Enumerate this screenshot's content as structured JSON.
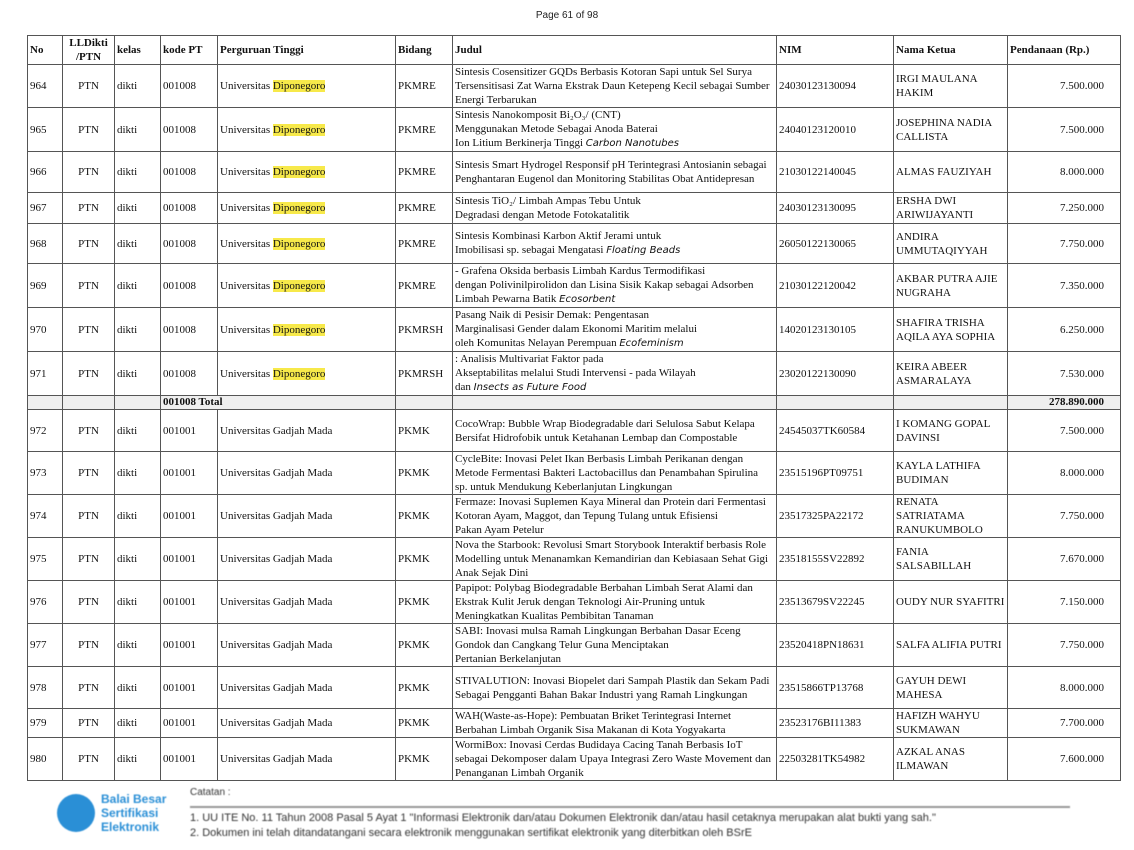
{
  "page_label": "Page 61 of 98",
  "highlight_color": "#f7e94a",
  "headers": [
    "No",
    "LLDikti /PTN",
    "kelas",
    "kode PT",
    "Perguruan Tinggi",
    "Bidang",
    "Judul",
    "NIM",
    "Nama Ketua",
    "Pendanaan (Rp.)"
  ],
  "rows": [
    {
      "no": "964",
      "lldikti": "PTN",
      "kelas": "dikti",
      "kode": "001008",
      "pt_a": "Universitas ",
      "pt_b": "Diponegoro",
      "bidang": "PKMRE",
      "judul": "Sintesis Cosensitizer GQDs Berbasis Kotoran Sapi untuk Sel Surya\nTersensitisasi Zat Warna Ekstrak Daun Ketepeng Kecil sebagai Sumber\nEnergi Terbarukan",
      "italic": "",
      "nim": "24030123130094",
      "nama": "IRGI MAULANA HAKIM",
      "dana": "7.500.000"
    },
    {
      "no": "965",
      "lldikti": "PTN",
      "kelas": "dikti",
      "kode": "001008",
      "pt_a": "Universitas ",
      "pt_b": "Diponegoro",
      "bidang": "PKMRE",
      "judul": "Sintesis Nanokomposit Bi₂O₃/                                (CNT)\nMenggunakan Metode                                  Sebagai Anoda Baterai\nIon Litium Berkinerja Tinggi",
      "italic": "Carbon Nanotubes",
      "nim": "24040123120010",
      "nama": "JOSEPHINA NADIA CALLISTA",
      "dana": "7.500.000"
    },
    {
      "no": "966",
      "lldikti": "PTN",
      "kelas": "dikti",
      "kode": "001008",
      "pt_a": "Universitas ",
      "pt_b": "Diponegoro",
      "bidang": "PKMRE",
      "judul": "Sintesis Smart Hydrogel Responsif pH Terintegrasi Antosianin sebagai\nPenghantaran Eugenol dan Monitoring Stabilitas Obat Antidepresan",
      "italic": "",
      "nim": "21030122140045",
      "nama": "ALMAS FAUZIYAH",
      "dana": "8.000.000"
    },
    {
      "no": "967",
      "lldikti": "PTN",
      "kelas": "dikti",
      "kode": "001008",
      "pt_a": "Universitas ",
      "pt_b": "Diponegoro",
      "bidang": "PKMRE",
      "judul": "Sintesis TiO₂/                                        Limbah Ampas Tebu Untuk\nDegradasi                   dengan Metode Fotokatalitik",
      "italic": "",
      "nim": "24030123130095",
      "nama": "ERSHA DWI ARIWIJAYANTI",
      "dana": "7.250.000"
    },
    {
      "no": "968",
      "lldikti": "PTN",
      "kelas": "dikti",
      "kode": "001008",
      "pt_a": "Universitas ",
      "pt_b": "Diponegoro",
      "bidang": "PKMRE",
      "judul": "Sintesis                           Kombinasi Karbon Aktif Jerami untuk\nImobilisasi              sp. sebagai                          Mengatasi",
      "italic": "Floating Beads",
      "nim": "26050122130065",
      "nama": "ANDIRA UMMUTAQIYYAH",
      "dana": "7.750.000"
    },
    {
      "no": "969",
      "lldikti": "PTN",
      "kelas": "dikti",
      "kode": "001008",
      "pt_a": "Universitas ",
      "pt_b": "Diponegoro",
      "bidang": "PKMRE",
      "judul": "      -            Grafena Oksida berbasis Limbah Kardus Termodifikasi\ndengan Polivinilpirolidon dan Lisina Sisik Kakap sebagai Adsorben\nLimbah Pewarna Batik",
      "italic": "Ecosorbent",
      "nim": "21030122120042",
      "nama": "AKBAR PUTRA AJIE NUGRAHA",
      "dana": "7.350.000"
    },
    {
      "no": "970",
      "lldikti": "PTN",
      "kelas": "dikti",
      "kode": "001008",
      "pt_a": "Universitas ",
      "pt_b": "Diponegoro",
      "bidang": "PKMRSH",
      "judul": "Pasang Naik                        di Pesisir Demak: Pengentasan\nMarginalisasi Gender dalam Ekonomi Maritim melalui\n             oleh Komunitas Nelayan Perempuan",
      "italic": "Ecofeminism",
      "nim": "14020123130105",
      "nama": "SHAFIRA TRISHA AQILA AYA SOPHIA",
      "dana": "6.250.000"
    },
    {
      "no": "971",
      "lldikti": "PTN",
      "kelas": "dikti",
      "kode": "001008",
      "pt_a": "Universitas ",
      "pt_b": "Diponegoro",
      "bidang": "PKMRSH",
      "judul": "                                : Analisis Multivariat Faktor pada\nAkseptabilitas melalui Studi Intervensi        -               pada Wilayah\n                   dan",
      "italic": "Insects as Future Food",
      "nim": "23020122130090",
      "nama": "KEIRA ABEER ASMARALAYA",
      "dana": "7.530.000"
    }
  ],
  "total": {
    "label": "001008 Total",
    "value": "278.890.000"
  },
  "rows2": [
    {
      "no": "972",
      "lldikti": "PTN",
      "kelas": "dikti",
      "kode": "001001",
      "pt": "Universitas Gadjah Mada",
      "bidang": "PKMK",
      "judul": "CocoWrap: Bubble Wrap Biodegradable dari Selulosa Sabut Kelapa\nBersifat Hidrofobik untuk Ketahanan Lembap dan Compostable",
      "nim": "24545037TK60584",
      "nama": "I KOMANG GOPAL DAVINSI",
      "dana": "7.500.000"
    },
    {
      "no": "973",
      "lldikti": "PTN",
      "kelas": "dikti",
      "kode": "001001",
      "pt": "Universitas Gadjah Mada",
      "bidang": "PKMK",
      "judul": "CycleBite: Inovasi Pelet Ikan Berbasis Limbah Perikanan dengan\nMetode Fermentasi Bakteri Lactobacillus dan Penambahan Spirulina\nsp. untuk Mendukung Keberlanjutan Lingkungan",
      "nim": "23515196PT09751",
      "nama": "KAYLA LATHIFA BUDIMAN",
      "dana": "8.000.000"
    },
    {
      "no": "974",
      "lldikti": "PTN",
      "kelas": "dikti",
      "kode": "001001",
      "pt": "Universitas Gadjah Mada",
      "bidang": "PKMK",
      "judul": "Fermaze: Inovasi Suplemen Kaya Mineral dan Protein dari Fermentasi\nKotoran Ayam, Maggot, dan Tepung Tulang untuk Efisiensi\nPakan Ayam Petelur",
      "nim": "23517325PA22172",
      "nama": "RENATA SATRIATAMA RANUKUMBOLO",
      "dana": "7.750.000"
    },
    {
      "no": "975",
      "lldikti": "PTN",
      "kelas": "dikti",
      "kode": "001001",
      "pt": "Universitas Gadjah Mada",
      "bidang": "PKMK",
      "judul": "Nova the Starbook: Revolusi Smart Storybook Interaktif berbasis Role\nModelling untuk Menanamkan Kemandirian dan Kebiasaan Sehat Gigi\nAnak Sejak Dini",
      "nim": "23518155SV22892",
      "nama": "FANIA SALSABILLAH",
      "dana": "7.670.000"
    },
    {
      "no": "976",
      "lldikti": "PTN",
      "kelas": "dikti",
      "kode": "001001",
      "pt": "Universitas Gadjah Mada",
      "bidang": "PKMK",
      "judul": "Papipot: Polybag Biodegradable Berbahan Limbah Serat Alami dan\nEkstrak Kulit Jeruk dengan Teknologi Air-Pruning untuk\nMeningkatkan Kualitas Pembibitan Tanaman",
      "nim": "23513679SV22245",
      "nama": "OUDY NUR SYAFITRI",
      "dana": "7.150.000"
    },
    {
      "no": "977",
      "lldikti": "PTN",
      "kelas": "dikti",
      "kode": "001001",
      "pt": "Universitas Gadjah Mada",
      "bidang": "PKMK",
      "judul": "SABI: Inovasi mulsa Ramah Lingkungan Berbahan Dasar Eceng\nGondok dan Cangkang Telur Guna Menciptakan\nPertanian Berkelanjutan",
      "nim": "23520418PN18631",
      "nama": "SALFA ALIFIA PUTRI",
      "dana": "7.750.000"
    },
    {
      "no": "978",
      "lldikti": "PTN",
      "kelas": "dikti",
      "kode": "001001",
      "pt": "Universitas Gadjah Mada",
      "bidang": "PKMK",
      "judul": "STIVALUTION: Inovasi Biopelet dari Sampah Plastik dan Sekam Padi\nSebagai Pengganti Bahan Bakar Industri yang Ramah Lingkungan",
      "nim": "23515866TP13768",
      "nama": "GAYUH DEWI MAHESA",
      "dana": "8.000.000"
    },
    {
      "no": "979",
      "lldikti": "PTN",
      "kelas": "dikti",
      "kode": "001001",
      "pt": "Universitas Gadjah Mada",
      "bidang": "PKMK",
      "judul": "WAH(Waste-as-Hope): Pembuatan Briket Terintegrasi Internet\nBerbahan Limbah Organik Sisa Makanan di Kota Yogyakarta",
      "nim": "23523176BI11383",
      "nama": "HAFIZH WAHYU SUKMAWAN",
      "dana": "7.700.000"
    },
    {
      "no": "980",
      "lldikti": "PTN",
      "kelas": "dikti",
      "kode": "001001",
      "pt": "Universitas Gadjah Mada",
      "bidang": "PKMK",
      "judul": "WormiBox: Inovasi Cerdas Budidaya Cacing Tanah Berbasis IoT\nsebagai Dekomposer dalam Upaya Integrasi Zero Waste Movement dan\nPenanganan Limbah Organik",
      "nim": "22503281TK54982",
      "nama": "AZKAL ANAS ILMAWAN",
      "dana": "7.600.000"
    }
  ],
  "footer": {
    "logo_text": [
      "Balai Besar",
      "Sertifikasi",
      "Elektronik"
    ],
    "notes_label": "Catatan :",
    "note1": "1. UU ITE No. 11 Tahun 2008 Pasal 5 Ayat 1 \"Informasi Elektronik dan/atau Dokumen Elektronik dan/atau hasil cetaknya merupakan alat bukti yang sah.\"",
    "note2": "2. Dokumen ini telah ditandatangani secara elektronik menggunakan sertifikat elektronik yang diterbitkan oleh BSrE"
  }
}
